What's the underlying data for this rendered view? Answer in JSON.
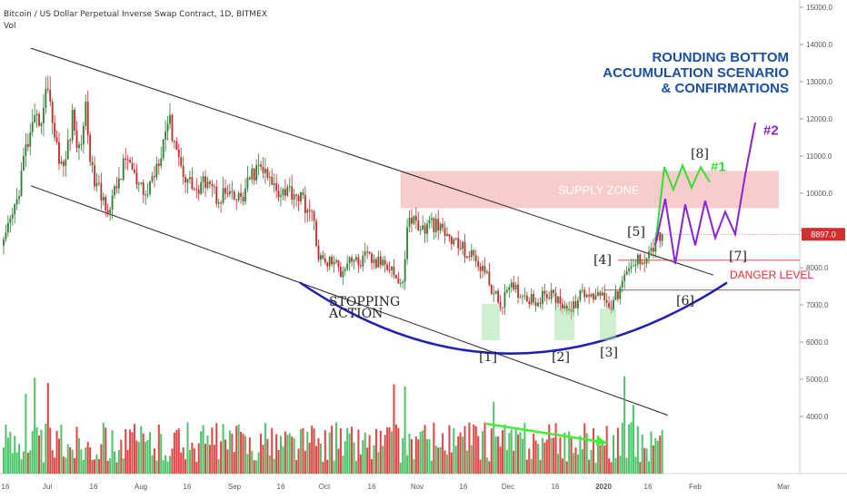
{
  "header": {
    "symbol": "Bitcoin / US Dollar Perpetual Inverse Swap Contract, 1D, BITMEX",
    "indicator": "Vol"
  },
  "chart_data": {
    "type": "candlestick",
    "title_lines": [
      "ROUNDING BOTTOM",
      "ACCUMULATION SCENARIO",
      "& CONFIRMATIONS"
    ],
    "ylim": [
      3000,
      15000
    ],
    "y_ticks": [
      4000,
      5000,
      6000,
      7000,
      8000,
      9000,
      10000,
      11000,
      12000,
      13000,
      14000,
      15000
    ],
    "y_tick_labels": [
      "4000.0",
      "5000.0",
      "6000.0",
      "7000.0",
      "8000.0",
      "9000.0",
      "10000.0",
      "11000.0",
      "12000.0",
      "13000.0",
      "14000.0",
      "15000.0"
    ],
    "x_tick_labels": [
      "16",
      "Jul",
      "16",
      "Aug",
      "16",
      "Sep",
      "16",
      "Oct",
      "16",
      "Nov",
      "16",
      "Dec",
      "16",
      "2020",
      "16",
      "Feb",
      "Mar"
    ],
    "last_price": "8897.0",
    "last_price_value": 8897,
    "price_anchors": [
      [
        0,
        8600
      ],
      [
        6,
        9800
      ],
      [
        10,
        11200
      ],
      [
        14,
        11800
      ],
      [
        18,
        12200
      ],
      [
        20,
        13000
      ],
      [
        23,
        11500
      ],
      [
        27,
        10600
      ],
      [
        31,
        12000
      ],
      [
        34,
        11100
      ],
      [
        37,
        12300
      ],
      [
        40,
        10500
      ],
      [
        44,
        9900
      ],
      [
        48,
        9600
      ],
      [
        52,
        10400
      ],
      [
        56,
        11000
      ],
      [
        60,
        10200
      ],
      [
        64,
        9900
      ],
      [
        68,
        10600
      ],
      [
        71,
        11200
      ],
      [
        74,
        12000
      ],
      [
        77,
        11500
      ],
      [
        80,
        10700
      ],
      [
        84,
        10300
      ],
      [
        88,
        10000
      ],
      [
        92,
        10500
      ],
      [
        96,
        9900
      ],
      [
        100,
        10000
      ],
      [
        104,
        9800
      ],
      [
        108,
        9900
      ],
      [
        112,
        10500
      ],
      [
        116,
        10700
      ],
      [
        120,
        10300
      ],
      [
        124,
        10100
      ],
      [
        128,
        10100
      ],
      [
        132,
        10000
      ],
      [
        136,
        9700
      ],
      [
        140,
        9200
      ],
      [
        142,
        8300
      ],
      [
        145,
        8100
      ],
      [
        148,
        8200
      ],
      [
        152,
        7900
      ],
      [
        156,
        8300
      ],
      [
        160,
        8100
      ],
      [
        164,
        8300
      ],
      [
        168,
        8100
      ],
      [
        172,
        8200
      ],
      [
        175,
        8000
      ],
      [
        178,
        7600
      ],
      [
        180,
        7500
      ],
      [
        182,
        9200
      ],
      [
        185,
        9300
      ],
      [
        189,
        9000
      ],
      [
        193,
        9200
      ],
      [
        197,
        9000
      ],
      [
        201,
        8800
      ],
      [
        205,
        8600
      ],
      [
        209,
        8400
      ],
      [
        213,
        8200
      ],
      [
        216,
        8000
      ],
      [
        219,
        7600
      ],
      [
        221,
        7300
      ],
      [
        224,
        7000
      ],
      [
        227,
        7300
      ],
      [
        230,
        7500
      ],
      [
        233,
        7300
      ],
      [
        237,
        7200
      ],
      [
        241,
        7100
      ],
      [
        245,
        7300
      ],
      [
        249,
        7200
      ],
      [
        253,
        7000
      ],
      [
        256,
        6800
      ],
      [
        259,
        7200
      ],
      [
        262,
        7300
      ],
      [
        265,
        7200
      ],
      [
        268,
        7400
      ],
      [
        271,
        7200
      ],
      [
        274,
        7000
      ],
      [
        277,
        7300
      ],
      [
        280,
        7700
      ],
      [
        283,
        8000
      ],
      [
        286,
        8200
      ],
      [
        289,
        8300
      ],
      [
        292,
        8500
      ],
      [
        295,
        8800
      ],
      [
        297,
        8900
      ]
    ],
    "supply_zone": {
      "label": "SUPPLY ZONE",
      "range": [
        9600,
        10600
      ],
      "color": "#f7b7b7"
    },
    "danger_level": {
      "label": "DANGER LEVEL",
      "upper": 8200,
      "lower": 7400,
      "color": "#f06060"
    },
    "channel": {
      "upper": [
        [
          0,
          13900
        ],
        [
          320,
          7800
        ]
      ],
      "lower": [
        [
          0,
          10200
        ],
        [
          320,
          4400
        ]
      ]
    },
    "rounding_bottom": {
      "left": 7600,
      "mid": 5050,
      "right": 7600,
      "color": "#1f1fb4"
    },
    "scenario_1": {
      "label": "#1",
      "color": "#33dd33",
      "values": [
        8600,
        10700,
        10100,
        10750,
        10150,
        10700,
        10300
      ]
    },
    "scenario_2": {
      "label": "#2",
      "color": "#8822dd",
      "values": [
        8600,
        9850,
        8100,
        9700,
        8600,
        9800,
        8800,
        9500,
        8900,
        10500,
        11900
      ]
    },
    "annotations": {
      "stopping_action": [
        "STOPPING",
        "ACTION"
      ],
      "wave_labels": [
        {
          "label": "[1]",
          "value": 6500
        },
        {
          "label": "[2]",
          "value": 6400
        },
        {
          "label": "[3]",
          "value": 6500
        },
        {
          "label": "[4]",
          "value": 8350
        },
        {
          "label": "[5]",
          "value": 9000
        },
        {
          "label": "[6]",
          "value": 8000
        },
        {
          "label": "[7]",
          "value": 8500
        },
        {
          "label": "[8]",
          "value": 10800
        }
      ]
    },
    "volume_trend_color": "#44ee33",
    "colors": {
      "up": "#2e7d32",
      "down": "#c62828",
      "vol_up": "#2eb84d",
      "vol_down": "#dd2222"
    }
  }
}
